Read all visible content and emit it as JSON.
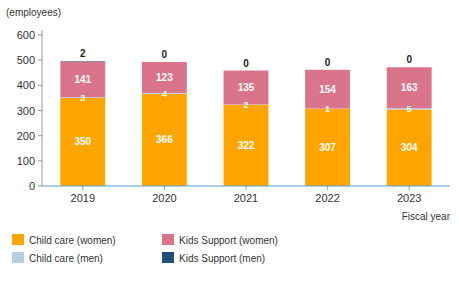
{
  "chart_data": {
    "type": "bar",
    "stacked": true,
    "data_labels": true,
    "grid": false,
    "legend": "lower left",
    "ylabel": "(employees)",
    "xlabel": "Fiscal year",
    "categories": [
      "2019",
      "2020",
      "2021",
      "2022",
      "2023"
    ],
    "series": [
      {
        "name": "Child care (women)",
        "color": "#FFA500",
        "values": [
          350,
          366,
          322,
          307,
          304
        ]
      },
      {
        "name": "Child care (men)",
        "color": "#B8CCE4",
        "values": [
          3,
          4,
          2,
          1,
          5
        ]
      },
      {
        "name": "Kids Support (women)",
        "color": "#D9748A",
        "values": [
          141,
          123,
          135,
          154,
          163
        ]
      },
      {
        "name": "Kids Support (men)",
        "color": "#1F4E79",
        "values": [
          2,
          0,
          0,
          0,
          0
        ]
      }
    ],
    "ylim": [
      0,
      620
    ],
    "yticks": [
      0,
      100,
      200,
      300,
      400,
      500,
      600
    ]
  }
}
